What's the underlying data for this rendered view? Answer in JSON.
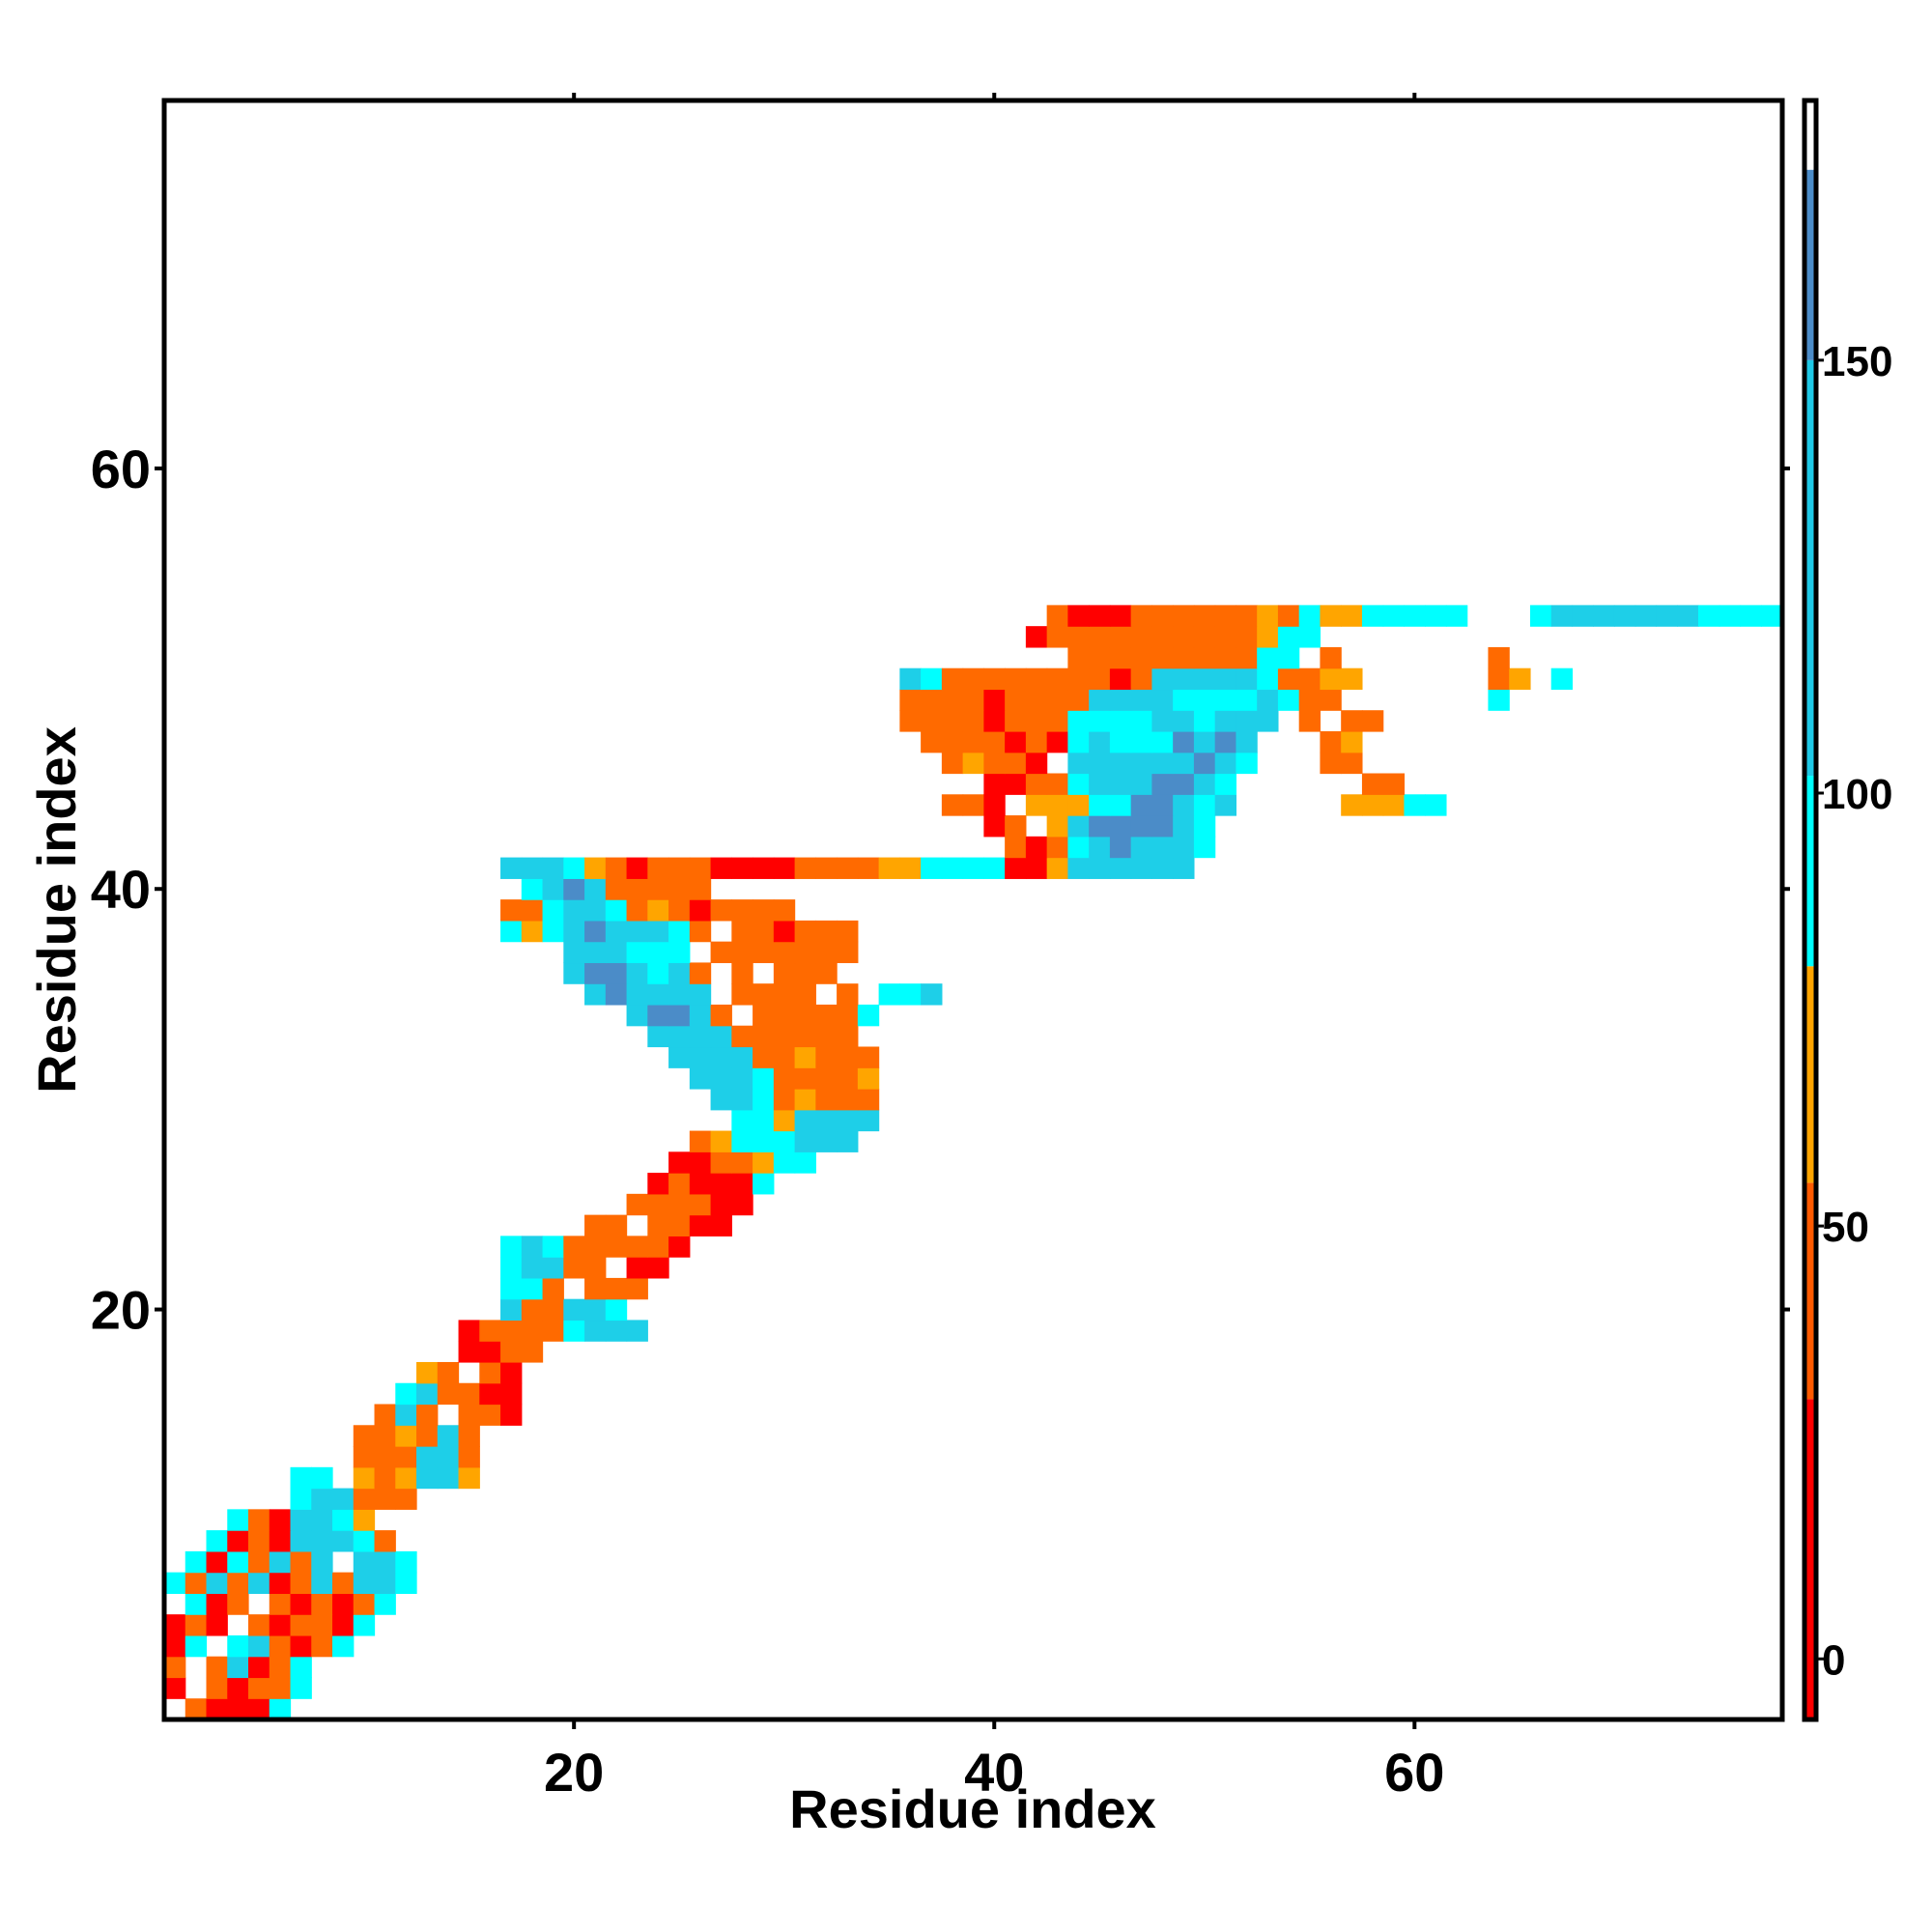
{
  "chart_data": {
    "type": "heatmap",
    "title": "",
    "xlabel": "Residue index",
    "ylabel": "Residue index",
    "xlim": [
      1,
      77
    ],
    "ylim": [
      1,
      77
    ],
    "x_ticks": [
      20,
      40,
      60
    ],
    "y_ticks": [
      20,
      40,
      60
    ],
    "colorbar": {
      "ticks": [
        0,
        50,
        100,
        150
      ],
      "range": [
        -7,
        180
      ],
      "bands": [
        {
          "from": -7,
          "to": 30,
          "color": "#ff0000"
        },
        {
          "from": 30,
          "to": 55,
          "color": "#ff5a00"
        },
        {
          "from": 55,
          "to": 80,
          "color": "#ffa500"
        },
        {
          "from": 80,
          "to": 102,
          "color": "#00ffff"
        },
        {
          "from": 102,
          "to": 150,
          "color": "#1ec8e6"
        },
        {
          "from": 150,
          "to": 172,
          "color": "#4b8cc8"
        },
        {
          "from": 172,
          "to": 180,
          "color": "#ffffff"
        }
      ]
    },
    "color_scale": {
      "red": "#ff0000",
      "orange": "#ff6a00",
      "amber": "#ffa500",
      "cyan": "#00ffff",
      "sky": "#1ecfe8",
      "steel": "#4b8cc8"
    },
    "cell_legend": "R=red (~0-30), O=orange (~30-55), A=amber (~55-80), C=cyan (~80-100), K=sky blue (~100-150), B=steel blue (~150-175)",
    "series": [
      {
        "values": [
          "2,1,O",
          "3,1,R",
          "4,1,R",
          "5,1,R",
          "6,1,C",
          "1,2,R",
          "3,2,O",
          "4,2,R",
          "5,2,O",
          "6,2,O",
          "7,2,C",
          "1,3,O",
          "3,3,O",
          "4,3,K",
          "5,3,R",
          "6,3,O",
          "7,3,C",
          "1,4,R",
          "2,4,C",
          "4,4,C",
          "5,4,K",
          "6,4,O",
          "7,4,R",
          "8,4,O",
          "9,4,C",
          "1,5,R",
          "2,5,O",
          "3,5,R",
          "5,5,O",
          "6,5,R",
          "7,5,O",
          "8,5,O",
          "9,5,R",
          "10,5,C",
          "2,6,C",
          "3,6,R",
          "4,6,O",
          "6,6,O",
          "7,6,R",
          "8,6,O",
          "9,6,R",
          "10,6,O",
          "11,6,C",
          "1,7,C",
          "2,7,O",
          "3,7,K",
          "4,7,O",
          "5,7,K",
          "6,7,R",
          "7,7,O",
          "8,7,K",
          "9,7,O",
          "10,7,K",
          "11,7,K",
          "12,7,C",
          "2,8,C",
          "3,8,R",
          "4,8,C",
          "5,8,O",
          "6,8,K",
          "7,8,O",
          "8,8,K",
          "10,8,K",
          "11,8,K",
          "12,8,C",
          "3,9,C",
          "4,9,R",
          "5,9,O",
          "6,9,R",
          "7,9,K",
          "8,9,K",
          "9,9,K",
          "10,9,C",
          "11,9,O",
          "4,10,C",
          "5,10,O",
          "6,10,R",
          "7,10,K",
          "8,10,K",
          "9,10,C",
          "10,10,A",
          "7,11,C",
          "8,11,K",
          "9,11,K",
          "10,11,O",
          "11,11,O",
          "12,11,O",
          "7,12,C",
          "8,12,C",
          "10,12,A",
          "11,12,O",
          "12,12,A",
          "13,12,K",
          "14,12,K",
          "15,12,A",
          "10,13,O",
          "11,13,O",
          "12,13,O",
          "13,13,K",
          "14,13,K",
          "15,13,O",
          "10,14,O",
          "11,14,O",
          "12,14,A",
          "13,14,O",
          "14,14,K",
          "15,14,O",
          "11,15,O",
          "12,15,K",
          "13,15,O",
          "15,15,O",
          "16,15,O",
          "17,15,R",
          "12,16,C",
          "13,16,K",
          "14,16,O",
          "15,16,O",
          "16,16,R",
          "17,16,R",
          "13,17,A",
          "14,17,O",
          "16,17,O",
          "17,17,R",
          "15,18,R",
          "16,18,R",
          "17,18,O",
          "18,18,O",
          "15,19,R",
          "16,19,O",
          "17,19,O",
          "18,19,O",
          "19,19,O",
          "20,19,C",
          "21,19,K",
          "22,19,K",
          "23,19,K",
          "17,20,K",
          "18,20,O",
          "19,20,O",
          "20,20,K",
          "21,20,K",
          "22,20,C",
          "17,21,C",
          "18,21,C",
          "19,21,O",
          "21,21,O",
          "22,21,O",
          "23,21,O",
          "17,22,C",
          "18,22,K",
          "19,22,K",
          "20,22,O",
          "21,22,O",
          "23,22,R",
          "24,22,R",
          "17,23,C",
          "18,23,K",
          "19,23,C",
          "20,23,O",
          "21,23,O",
          "22,23,O",
          "23,23,O",
          "24,23,O",
          "25,23,R",
          "21,24,O",
          "22,24,O",
          "24,24,O",
          "25,24,O",
          "26,24,R",
          "27,24,R",
          "23,25,O",
          "24,25,O",
          "25,25,O",
          "26,25,O",
          "27,25,R",
          "28,25,R",
          "24,26,R",
          "25,26,O",
          "26,26,R",
          "27,26,R",
          "28,26,R",
          "29,26,C",
          "25,27,R",
          "26,27,R",
          "27,27,O",
          "28,27,O",
          "29,27,A",
          "30,27,C",
          "31,27,C",
          "26,28,O",
          "27,28,A",
          "28,28,C",
          "29,28,C",
          "30,28,C",
          "31,28,K",
          "32,28,K",
          "33,28,K",
          "28,29,C",
          "29,29,C",
          "30,29,A",
          "31,29,K",
          "32,29,K",
          "33,29,K",
          "34,29,K",
          "27,30,K",
          "28,30,K",
          "29,30,C",
          "30,30,O",
          "31,30,A",
          "32,30,O",
          "33,30,O",
          "34,30,O",
          "26,31,K",
          "27,31,K",
          "28,31,K",
          "29,31,C",
          "30,31,O",
          "31,31,O",
          "32,31,O",
          "33,31,O",
          "34,31,A",
          "25,32,K",
          "26,32,K",
          "27,32,K",
          "28,32,K",
          "29,32,O",
          "30,32,O",
          "31,32,A",
          "32,32,O",
          "33,32,O",
          "34,32,O",
          "24,33,K",
          "25,33,K",
          "26,33,K",
          "27,33,K",
          "28,33,O",
          "29,33,O",
          "30,33,O",
          "31,33,O",
          "32,33,O",
          "33,33,O",
          "23,34,K",
          "24,34,B",
          "25,34,B",
          "26,34,K",
          "27,34,O",
          "29,34,O",
          "30,34,O",
          "31,34,O",
          "32,34,O",
          "33,34,O",
          "34,34,C",
          "21,35,K",
          "22,35,B",
          "23,35,K",
          "24,35,K",
          "25,35,K",
          "26,35,K",
          "28,35,O",
          "29,35,O",
          "30,35,O",
          "31,35,O",
          "33,35,O",
          "35,35,C",
          "36,35,C",
          "37,35,K",
          "20,36,K",
          "21,36,B",
          "22,36,B",
          "23,36,K",
          "24,36,C",
          "25,36,K",
          "26,36,O",
          "28,36,O",
          "30,36,O",
          "31,36,O",
          "32,36,O",
          "20,37,K",
          "21,37,K",
          "22,37,K",
          "23,37,C",
          "24,37,C",
          "25,37,C",
          "27,37,O",
          "28,37,O",
          "29,37,O",
          "30,37,O",
          "31,37,O",
          "32,37,O",
          "33,37,O",
          "17,38,C",
          "18,38,A",
          "19,38,C",
          "20,38,K",
          "21,38,B",
          "22,38,K",
          "23,38,K",
          "24,38,K",
          "25,38,C",
          "26,38,O",
          "28,38,O",
          "29,38,O",
          "30,38,R",
          "31,38,O",
          "32,38,O",
          "33,38,O",
          "17,39,O",
          "18,39,O",
          "19,39,C",
          "20,39,K",
          "21,39,K",
          "22,39,C",
          "23,39,O",
          "24,39,A",
          "25,39,O",
          "26,39,R",
          "27,39,O",
          "28,39,O",
          "29,39,O",
          "30,39,O",
          "18,40,C",
          "19,40,K",
          "20,40,B",
          "21,40,K",
          "22,40,O",
          "23,40,O",
          "24,40,O",
          "25,40,O",
          "26,40,O",
          "17,41,K",
          "18,41,K",
          "19,41,K",
          "20,41,C",
          "21,41,A",
          "22,41,O",
          "23,41,R",
          "24,41,O",
          "25,41,O",
          "26,41,O",
          "27,41,R",
          "28,41,R",
          "29,41,R",
          "30,41,R",
          "31,41,O",
          "32,41,O",
          "33,41,O",
          "34,41,O",
          "35,41,A",
          "36,41,A",
          "37,41,C",
          "38,41,C",
          "39,41,C",
          "40,41,C",
          "41,41,R",
          "42,41,R",
          "43,41,A",
          "44,41,K",
          "45,41,K",
          "46,41,K",
          "47,41,K",
          "48,41,K",
          "49,41,K",
          "41,42,O",
          "42,42,R",
          "43,42,O",
          "44,42,C",
          "45,42,K",
          "46,42,B",
          "47,42,K",
          "48,42,K",
          "49,42,K",
          "50,42,C",
          "40,43,R",
          "41,43,O",
          "43,43,A",
          "44,43,K",
          "45,43,B",
          "46,43,B",
          "47,43,B",
          "48,43,B",
          "49,43,K",
          "50,43,C",
          "38,44,O",
          "39,44,O",
          "40,44,R",
          "42,44,A",
          "43,44,A",
          "44,44,A",
          "45,44,C",
          "46,44,C",
          "47,44,B",
          "48,44,B",
          "49,44,K",
          "50,44,C",
          "51,44,K",
          "57,44,A",
          "58,44,A",
          "59,44,A",
          "60,44,C",
          "61,44,C",
          "40,45,R",
          "41,45,R",
          "42,45,O",
          "43,45,O",
          "44,45,C",
          "45,45,K",
          "46,45,K",
          "47,45,K",
          "48,45,B",
          "49,45,B",
          "50,45,K",
          "51,45,C",
          "58,45,O",
          "59,45,O",
          "38,46,O",
          "39,46,A",
          "40,46,O",
          "41,46,O",
          "42,46,R",
          "44,46,K",
          "45,46,K",
          "46,46,K",
          "47,46,K",
          "48,46,K",
          "49,46,K",
          "50,46,B",
          "51,46,K",
          "52,46,C",
          "56,46,O",
          "57,46,O",
          "37,47,O",
          "38,47,O",
          "39,47,O",
          "40,47,O",
          "41,47,R",
          "42,47,O",
          "43,47,R",
          "44,47,C",
          "45,47,K",
          "46,47,C",
          "47,47,C",
          "48,47,C",
          "49,47,B",
          "50,47,K",
          "51,47,B",
          "52,47,K",
          "56,47,O",
          "57,47,A",
          "36,48,O",
          "37,48,O",
          "38,48,O",
          "39,48,O",
          "40,48,R",
          "41,48,O",
          "42,48,O",
          "43,48,O",
          "44,48,C",
          "45,48,C",
          "46,48,C",
          "47,48,C",
          "48,48,K",
          "49,48,K",
          "50,48,C",
          "51,48,K",
          "52,48,K",
          "53,48,K",
          "55,48,O",
          "57,48,O",
          "58,48,O",
          "36,49,O",
          "37,49,O",
          "38,49,O",
          "39,49,O",
          "40,49,R",
          "41,49,O",
          "42,49,O",
          "43,49,O",
          "44,49,O",
          "45,49,K",
          "46,49,K",
          "47,49,K",
          "48,49,K",
          "49,49,C",
          "50,49,C",
          "51,49,C",
          "52,49,C",
          "53,49,K",
          "54,49,C",
          "55,49,O",
          "56,49,O",
          "64,49,C",
          "36,50,K",
          "37,50,C",
          "38,50,O",
          "39,50,O",
          "40,50,O",
          "41,50,O",
          "42,50,O",
          "43,50,O",
          "44,50,O",
          "45,50,O",
          "46,50,R",
          "47,50,O",
          "48,50,K",
          "49,50,K",
          "50,50,K",
          "51,50,K",
          "52,50,K",
          "53,50,C",
          "54,50,O",
          "55,50,O",
          "56,50,A",
          "57,50,A",
          "64,50,O",
          "65,50,A",
          "67,50,C",
          "44,51,O",
          "45,51,O",
          "46,51,O",
          "47,51,O",
          "48,51,O",
          "49,51,O",
          "50,51,O",
          "51,51,O",
          "52,51,O",
          "53,51,C",
          "54,51,C",
          "56,51,O",
          "64,51,O",
          "42,52,R",
          "43,52,O",
          "44,52,O",
          "45,52,O",
          "46,52,O",
          "47,52,O",
          "48,52,O",
          "49,52,O",
          "50,52,O",
          "51,52,O",
          "52,52,O",
          "53,52,A",
          "54,52,C",
          "55,52,C",
          "43,53,O",
          "44,53,R",
          "45,53,R",
          "46,53,R",
          "47,53,O",
          "48,53,O",
          "49,53,O",
          "50,53,O",
          "51,53,O",
          "52,53,O",
          "53,53,A",
          "54,53,O",
          "55,53,C",
          "56,53,A",
          "57,53,A",
          "58,53,C",
          "59,53,C",
          "60,53,C",
          "61,53,C",
          "62,53,C",
          "66,53,C",
          "67,53,K",
          "68,53,K",
          "69,53,K",
          "70,53,K",
          "71,53,K",
          "72,53,K",
          "73,53,K",
          "74,53,C",
          "75,53,C",
          "76,53,C",
          "77,53,C"
        ]
      }
    ]
  }
}
